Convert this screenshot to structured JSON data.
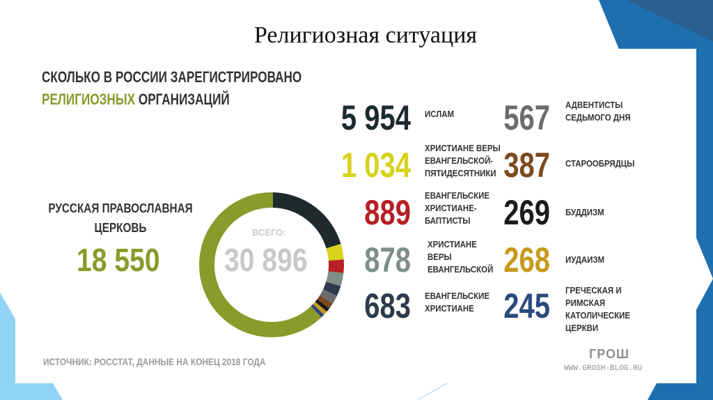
{
  "slide": {
    "title": "Религиозная ситуация"
  },
  "infographic": {
    "headline_line1": "СКОЛЬКО В РОССИИ ЗАРЕГИСТРИРОВАНО",
    "headline_line2_accent": "РЕЛИГИОЗНЫХ",
    "headline_line2_rest": "ОРГАНИЗАЦИЙ",
    "roc_label_line1": "РУССКАЯ ПРАВОСЛАВНАЯ",
    "roc_label_line2": "ЦЕРКОВЬ",
    "roc_value": "18 550",
    "total_label": "ВСЕГО:",
    "total_value": "30 896",
    "source": "ИСТОЧНИК: РОССТАТ, ДАННЫЕ НА КОНЕЦ 2018 ГОДА",
    "logo": "ГРОШ",
    "website": "WWW.GROSH-BLOG.RU"
  },
  "stats": [
    {
      "value": "5 954",
      "label": [
        "ИСЛАМ"
      ],
      "color": "#1e2a2c"
    },
    {
      "value": "1 034",
      "label": [
        "ХРИСТИАНЕ ВЕРЫ",
        "ЕВАНГЕЛЬСКОЙ-",
        "ПЯТИДЕСЯТНИКИ"
      ],
      "color": "#d7d21b"
    },
    {
      "value": "889",
      "label": [
        "ЕВАНГЕЛЬСКИЕ",
        "ХРИСТИАНЕ-",
        "БАПТИСТЫ"
      ],
      "color": "#b61f24"
    },
    {
      "value": "878",
      "label": [
        "ХРИСТИАНЕ",
        "ВЕРЫ",
        "ЕВАНГЕЛЬСКОЙ"
      ],
      "color": "#7d8f86"
    },
    {
      "value": "683",
      "label": [
        "ЕВАНГЕЛЬСКИЕ",
        "ХРИСТИАНЕ"
      ],
      "color": "#2e3a4a"
    },
    {
      "value": "567",
      "label": [
        "АДВЕНТИСТЫ",
        "СЕДЬМОГО ДНЯ"
      ],
      "color": "#6b6b6b"
    },
    {
      "value": "387",
      "label": [
        "СТАРООБРЯДЦЫ"
      ],
      "color": "#7b4a1e"
    },
    {
      "value": "269",
      "label": [
        "БУДДИЗМ"
      ],
      "color": "#1b1b1b"
    },
    {
      "value": "268",
      "label": [
        "ИУДАИЗМ"
      ],
      "color": "#c79a1a"
    },
    {
      "value": "245",
      "label": [
        "ГРЕЧЕСКАЯ И",
        "РИМСКАЯ",
        "КАТОЛИЧЕСКИЕ",
        "ЦЕРКВИ"
      ],
      "color": "#2b4a7c"
    }
  ],
  "chart_data": {
    "type": "pie",
    "categories": [
      "РУССКАЯ ПРАВОСЛАВНАЯ ЦЕРКОВЬ",
      "ИСЛАМ",
      "ХРИСТИАНЕ ВЕРЫ ЕВАНГЕЛЬСКОЙ-ПЯТИДЕСЯТНИКИ",
      "ЕВАНГЕЛЬСКИЕ ХРИСТИАНЕ-БАПТИСТЫ",
      "ХРИСТИАНЕ ВЕРЫ ЕВАНГЕЛЬСКОЙ",
      "ЕВАНГЕЛЬСКИЕ ХРИСТИАНЕ",
      "АДВЕНТИСТЫ СЕДЬМОГО ДНЯ",
      "СТАРООБРЯДЦЫ",
      "БУДДИЗМ",
      "ИУДАИЗМ",
      "ГРЕЧЕСКАЯ И РИМСКАЯ КАТОЛИЧЕСКИЕ ЦЕРКВИ"
    ],
    "values": [
      18550,
      5954,
      1034,
      889,
      878,
      683,
      567,
      387,
      269,
      268,
      245
    ],
    "colors": [
      "#8a9a2b",
      "#1e2a2c",
      "#d7d21b",
      "#b61f24",
      "#7d8f86",
      "#2e3a4a",
      "#6b6b6b",
      "#7b4a1e",
      "#1b1b1b",
      "#c79a1a",
      "#2b4a7c"
    ],
    "total": 30896,
    "title": ""
  },
  "colors": {
    "accent": "#8a9a2b",
    "muted": "#c8c8c8",
    "deco_blue": "#1f6fb0",
    "deco_light": "#8fd3f2"
  }
}
